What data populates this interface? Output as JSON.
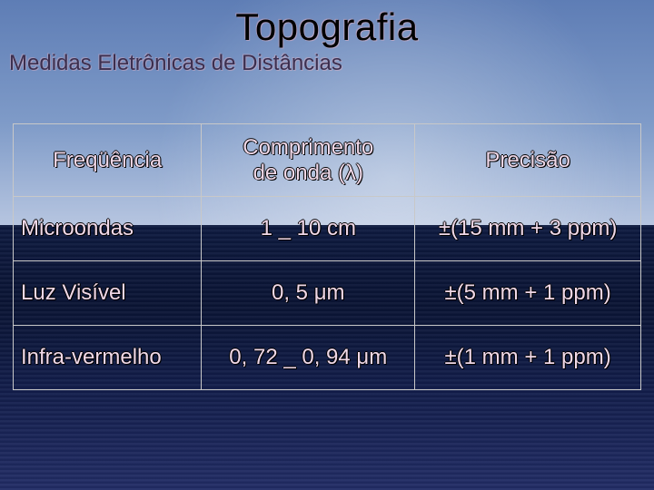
{
  "slide": {
    "title": "Topografia",
    "subtitle": "Medidas Eletrônicas de Distâncias"
  },
  "table": {
    "type": "table",
    "background_top": "#6a8bc4",
    "background_sea": "#121d4a",
    "border_color": "#c8c8c8",
    "text_color": "#f0d8e8",
    "text_shadow_color": "#000000",
    "header_fontsize": 24,
    "body_fontsize": 24,
    "title_fontsize": 42,
    "subtitle_fontsize": 24,
    "columns": [
      {
        "label": "Freqüência",
        "align": "left",
        "width_pct": 30
      },
      {
        "label": "Comprimento de onda (λ)",
        "align": "center",
        "width_pct": 34
      },
      {
        "label": "Precisão",
        "align": "center",
        "width_pct": 36
      }
    ],
    "col1_line1": "Comprimento",
    "col1_line2": "de onda (λ)",
    "rows": [
      {
        "freq": "Microondas",
        "onda": "1 _ 10 cm",
        "precisao": "±(15 mm + 3 ppm)"
      },
      {
        "freq": "Luz Visível",
        "onda": "0, 5 μm",
        "precisao": "±(5 mm + 1 ppm)"
      },
      {
        "freq": "Infra-vermelho",
        "onda": "0, 72 _ 0, 94 μm",
        "precisao": "±(1 mm + 1 ppm)"
      }
    ]
  }
}
